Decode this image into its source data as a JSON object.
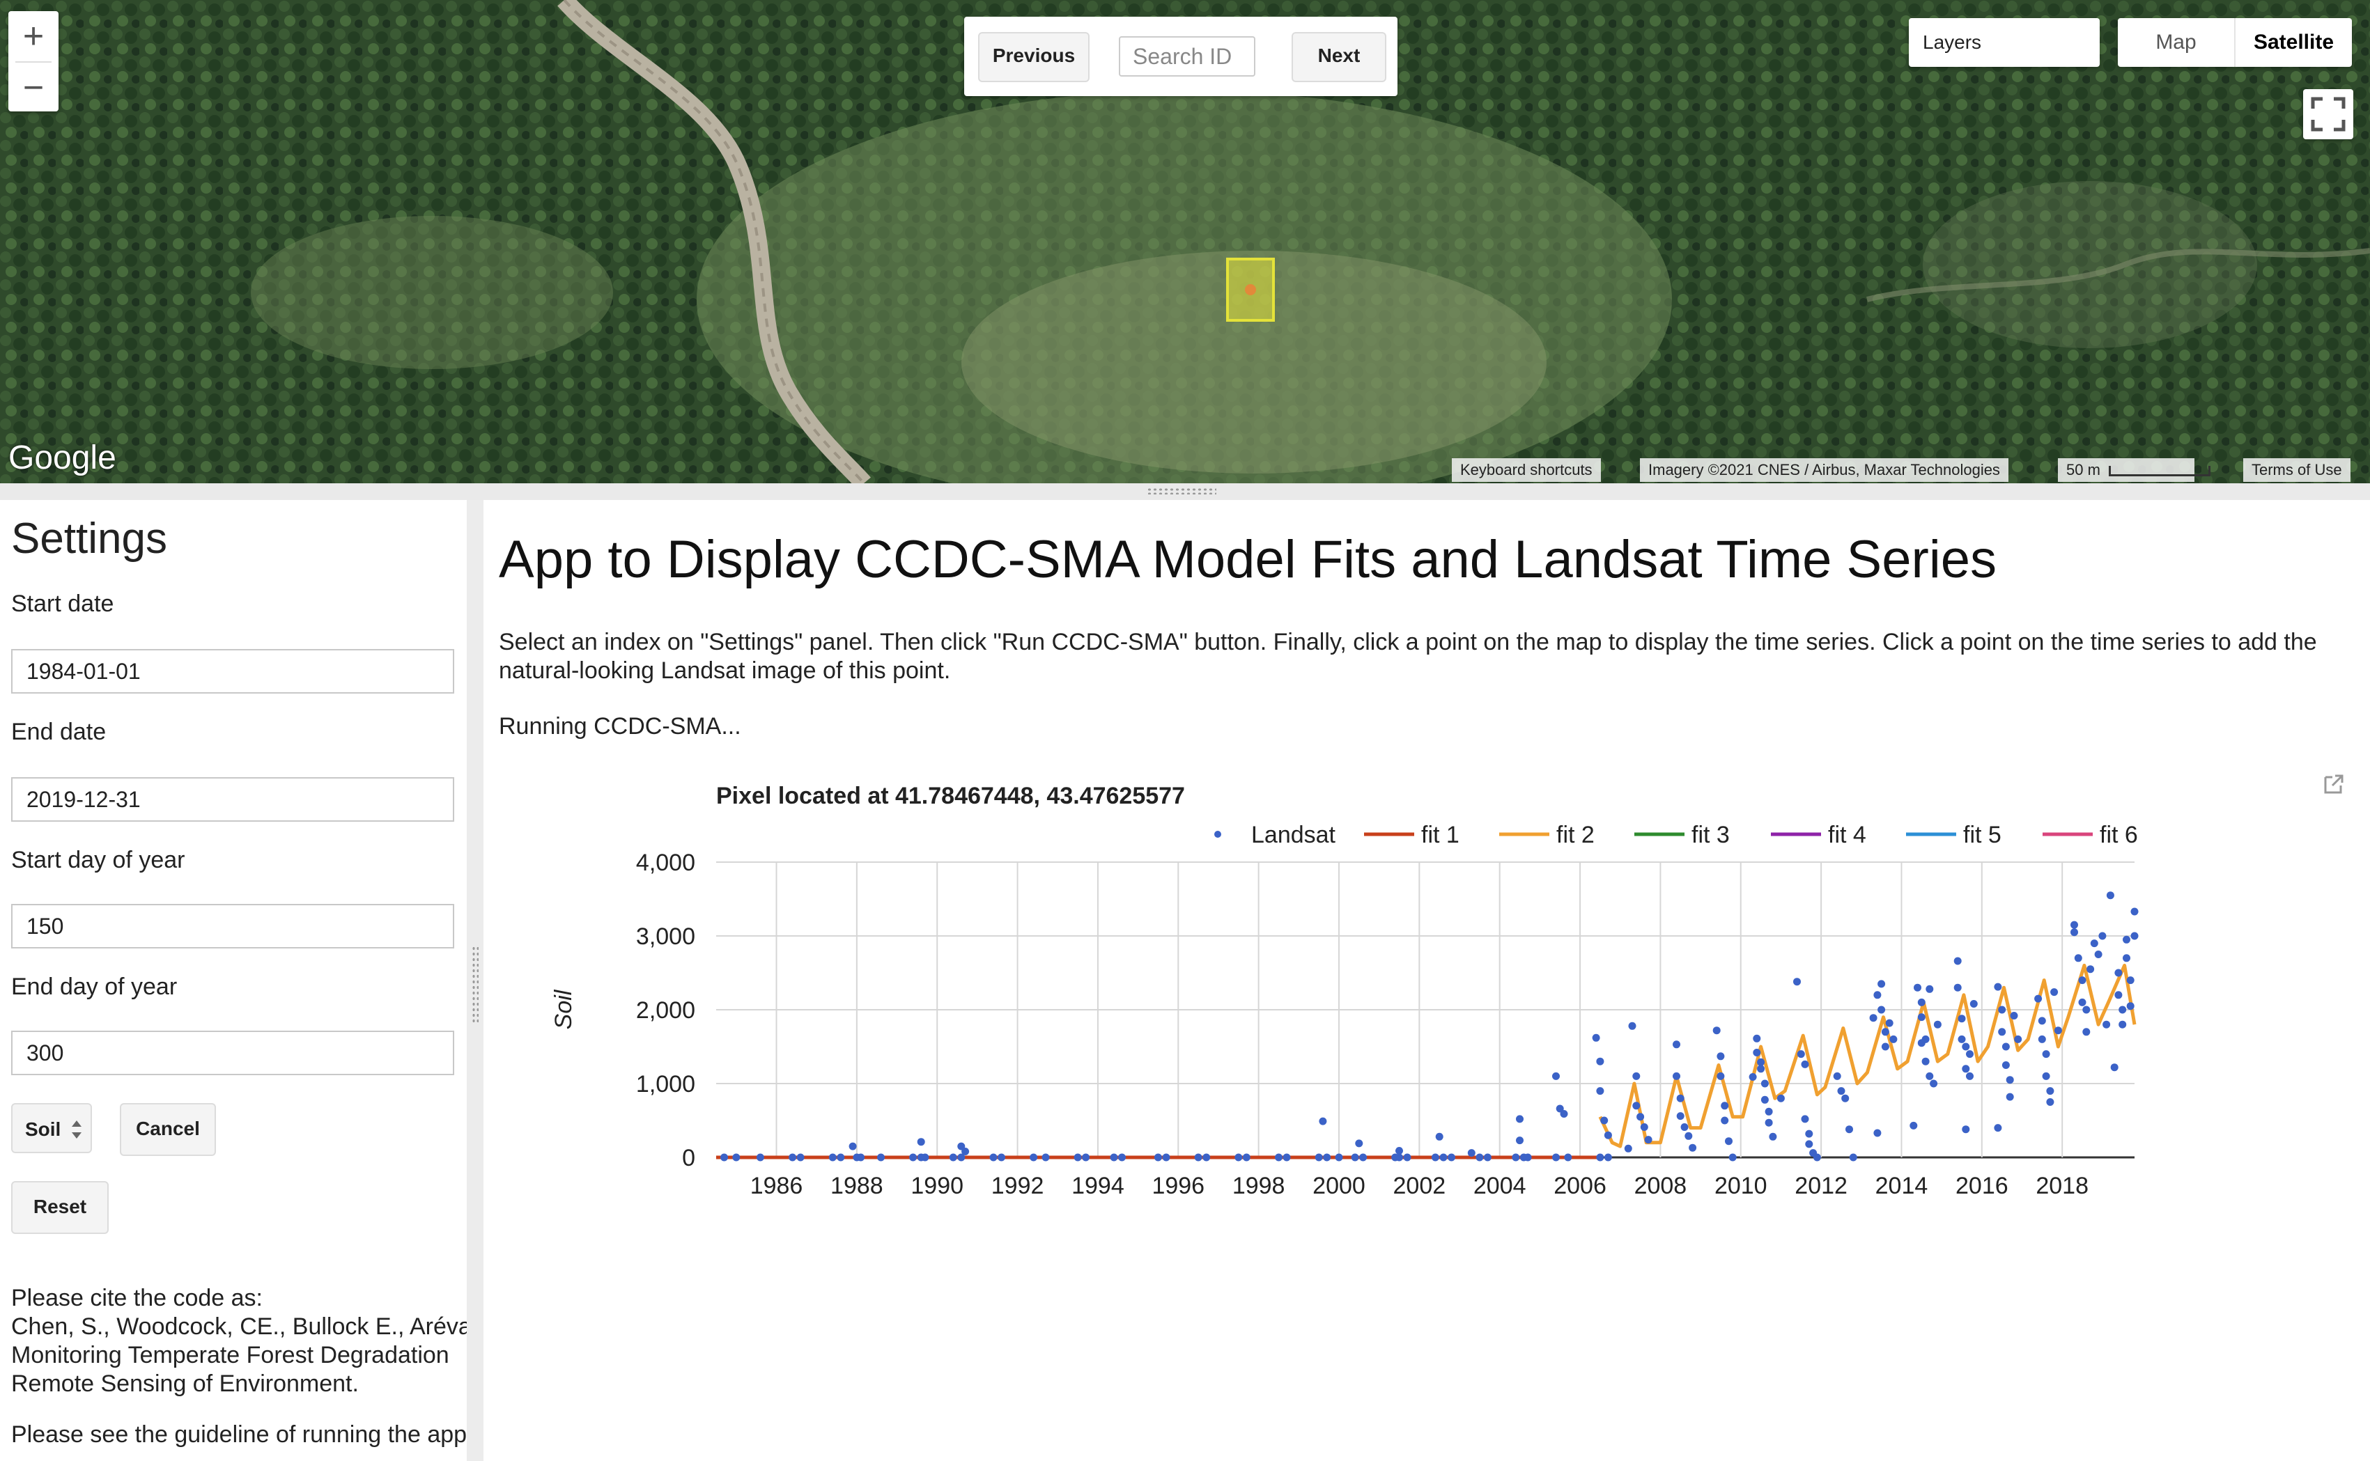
{
  "map": {
    "zoom_in": "+",
    "zoom_out": "−",
    "previous_label": "Previous",
    "search_placeholder": "Search ID",
    "next_label": "Next",
    "layers_label": "Layers",
    "map_type_map": "Map",
    "map_type_satellite": "Satellite",
    "google_logo": "Google",
    "keyboard_shortcuts": "Keyboard shortcuts",
    "imagery_credit": "Imagery ©2021 CNES / Airbus, Maxar Technologies",
    "scale_label": "50 m",
    "terms": "Terms of Use",
    "marker_color": "#e4e23a",
    "icons": [
      "plus-icon",
      "minus-icon",
      "fullscreen-icon"
    ]
  },
  "settings": {
    "title": "Settings",
    "start_date_label": "Start date",
    "start_date_value": "1984-01-01",
    "end_date_label": "End date",
    "end_date_value": "2019-12-31",
    "start_doy_label": "Start day of year",
    "start_doy_value": "150",
    "end_doy_label": "End day of year",
    "end_doy_value": "300",
    "index_select_value": "Soil",
    "cancel_label": "Cancel",
    "reset_label": "Reset",
    "cite_lines": [
      "Please cite the code as:",
      "Chen, S., Woodcock, CE., Bullock E., Arévalo",
      "Monitoring Temperate Forest Degradation",
      "Remote Sensing of Environment."
    ],
    "guideline_text": "Please see the guideline of running the app"
  },
  "main": {
    "title": "App to Display CCDC-SMA Model Fits and Landsat Time Series",
    "instructions": "Select an index on \"Settings\" panel. Then click \"Run CCDC-SMA\" button. Finally, click a point on the map to display the time series. Click a point on the time series to add the natural-looking Landsat image of this point.",
    "status": "Running CCDC-SMA..."
  },
  "chart_data": {
    "type": "scatter",
    "title": "Pixel located at 41.78467448, 43.47625577",
    "xlabel": "",
    "ylabel": "Soil",
    "xlim": [
      1984.5,
      2019.8
    ],
    "ylim": [
      0,
      4000
    ],
    "yticks": [
      0,
      1000,
      2000,
      3000,
      4000
    ],
    "ytick_labels": [
      "0",
      "1,000",
      "2,000",
      "3,000",
      "4,000"
    ],
    "xticks": [
      1986,
      1988,
      1990,
      1992,
      1994,
      1996,
      1998,
      2000,
      2002,
      2004,
      2006,
      2008,
      2010,
      2012,
      2014,
      2016,
      2018
    ],
    "grid": true,
    "legend_position": "top",
    "legend": [
      {
        "name": "Landsat",
        "kind": "dot",
        "color": "#3b62c7"
      },
      {
        "name": "fit 1",
        "kind": "line",
        "color": "#c8401b"
      },
      {
        "name": "fit 2",
        "kind": "line",
        "color": "#f0a030"
      },
      {
        "name": "fit 3",
        "kind": "line",
        "color": "#2e8b2e"
      },
      {
        "name": "fit 4",
        "kind": "line",
        "color": "#8e23a8"
      },
      {
        "name": "fit 5",
        "kind": "line",
        "color": "#2c8fd6"
      },
      {
        "name": "fit 6",
        "kind": "line",
        "color": "#d9457c"
      }
    ],
    "series": [
      {
        "name": "Landsat",
        "points": [
          [
            1984.7,
            0
          ],
          [
            1985.0,
            0
          ],
          [
            1985.6,
            0
          ],
          [
            1986.4,
            0
          ],
          [
            1986.6,
            0
          ],
          [
            1987.4,
            0
          ],
          [
            1987.6,
            0
          ],
          [
            1988.0,
            0
          ],
          [
            1988.1,
            0
          ],
          [
            1988.6,
            0
          ],
          [
            1989.4,
            0
          ],
          [
            1989.6,
            0
          ],
          [
            1989.7,
            0
          ],
          [
            1990.4,
            0
          ],
          [
            1990.6,
            0
          ],
          [
            1991.4,
            0
          ],
          [
            1991.6,
            0
          ],
          [
            1992.4,
            0
          ],
          [
            1992.7,
            0
          ],
          [
            1993.5,
            0
          ],
          [
            1993.7,
            0
          ],
          [
            1994.4,
            0
          ],
          [
            1994.6,
            0
          ],
          [
            1995.5,
            0
          ],
          [
            1995.7,
            0
          ],
          [
            1996.5,
            0
          ],
          [
            1996.7,
            0
          ],
          [
            1997.5,
            0
          ],
          [
            1997.7,
            0
          ],
          [
            1998.5,
            0
          ],
          [
            1998.7,
            0
          ],
          [
            1999.5,
            0
          ],
          [
            1999.7,
            0
          ],
          [
            2000.0,
            0
          ],
          [
            2000.4,
            0
          ],
          [
            2000.6,
            0
          ],
          [
            2001.4,
            0
          ],
          [
            2001.5,
            0
          ],
          [
            2001.7,
            0
          ],
          [
            2002.4,
            0
          ],
          [
            2002.6,
            0
          ],
          [
            2002.8,
            0
          ],
          [
            2003.5,
            0
          ],
          [
            2003.7,
            0
          ],
          [
            2004.4,
            0
          ],
          [
            2004.6,
            0
          ],
          [
            2004.7,
            0
          ],
          [
            2005.4,
            0
          ],
          [
            2005.7,
            0
          ],
          [
            2006.5,
            0
          ],
          [
            2006.7,
            0
          ],
          [
            1987.9,
            150
          ],
          [
            1989.6,
            210
          ],
          [
            1990.6,
            150
          ],
          [
            1990.7,
            80
          ],
          [
            1999.6,
            490
          ],
          [
            2000.5,
            190
          ],
          [
            2001.5,
            90
          ],
          [
            2002.5,
            280
          ],
          [
            2003.3,
            60
          ],
          [
            2004.5,
            520
          ],
          [
            2004.5,
            230
          ],
          [
            2005.4,
            1100
          ],
          [
            2005.5,
            660
          ],
          [
            2005.6,
            590
          ],
          [
            2006.4,
            1620
          ],
          [
            2006.5,
            1300
          ],
          [
            2006.5,
            900
          ],
          [
            2006.6,
            500
          ],
          [
            2006.7,
            300
          ],
          [
            2007.2,
            120
          ],
          [
            2007.3,
            1780
          ],
          [
            2007.4,
            1100
          ],
          [
            2007.4,
            700
          ],
          [
            2007.5,
            550
          ],
          [
            2007.6,
            410
          ],
          [
            2007.7,
            240
          ],
          [
            2008.4,
            1530
          ],
          [
            2008.4,
            1100
          ],
          [
            2008.5,
            800
          ],
          [
            2008.5,
            560
          ],
          [
            2008.6,
            410
          ],
          [
            2008.7,
            290
          ],
          [
            2008.8,
            130
          ],
          [
            2009.4,
            1720
          ],
          [
            2009.5,
            1370
          ],
          [
            2009.5,
            1100
          ],
          [
            2009.6,
            700
          ],
          [
            2009.6,
            500
          ],
          [
            2009.7,
            220
          ],
          [
            2009.8,
            0
          ],
          [
            2010.3,
            1090
          ],
          [
            2010.4,
            1610
          ],
          [
            2010.4,
            1420
          ],
          [
            2010.5,
            1290
          ],
          [
            2010.5,
            1200
          ],
          [
            2010.6,
            1000
          ],
          [
            2010.6,
            780
          ],
          [
            2010.7,
            620
          ],
          [
            2010.7,
            470
          ],
          [
            2010.8,
            280
          ],
          [
            2011.0,
            800
          ],
          [
            2011.4,
            2380
          ],
          [
            2011.5,
            1400
          ],
          [
            2011.6,
            1260
          ],
          [
            2011.6,
            520
          ],
          [
            2011.7,
            320
          ],
          [
            2011.7,
            180
          ],
          [
            2011.8,
            60
          ],
          [
            2011.9,
            0
          ],
          [
            2012.4,
            1100
          ],
          [
            2012.5,
            900
          ],
          [
            2012.6,
            800
          ],
          [
            2012.7,
            380
          ],
          [
            2012.8,
            0
          ],
          [
            2013.3,
            1890
          ],
          [
            2013.4,
            2200
          ],
          [
            2013.5,
            2350
          ],
          [
            2013.5,
            2000
          ],
          [
            2013.6,
            1700
          ],
          [
            2013.6,
            1500
          ],
          [
            2013.7,
            1820
          ],
          [
            2013.4,
            330
          ],
          [
            2013.8,
            1600
          ],
          [
            2014.4,
            2300
          ],
          [
            2014.5,
            2100
          ],
          [
            2014.5,
            1900
          ],
          [
            2014.6,
            1600
          ],
          [
            2014.6,
            1300
          ],
          [
            2014.7,
            1100
          ],
          [
            2014.8,
            1000
          ],
          [
            2014.5,
            1550
          ],
          [
            2014.3,
            430
          ],
          [
            2014.7,
            2280
          ],
          [
            2014.9,
            1800
          ],
          [
            2015.4,
            2660
          ],
          [
            2015.4,
            2300
          ],
          [
            2015.5,
            1880
          ],
          [
            2015.5,
            1600
          ],
          [
            2015.6,
            1500
          ],
          [
            2015.6,
            1200
          ],
          [
            2015.7,
            1100
          ],
          [
            2015.7,
            1400
          ],
          [
            2015.6,
            380
          ],
          [
            2015.8,
            2080
          ],
          [
            2016.4,
            2310
          ],
          [
            2016.5,
            2000
          ],
          [
            2016.5,
            1700
          ],
          [
            2016.6,
            1500
          ],
          [
            2016.6,
            1250
          ],
          [
            2016.7,
            1050
          ],
          [
            2016.7,
            820
          ],
          [
            2016.4,
            400
          ],
          [
            2016.8,
            1920
          ],
          [
            2016.9,
            1600
          ],
          [
            2017.4,
            2150
          ],
          [
            2017.5,
            1850
          ],
          [
            2017.5,
            1600
          ],
          [
            2017.6,
            1400
          ],
          [
            2017.6,
            1100
          ],
          [
            2017.7,
            900
          ],
          [
            2017.7,
            750
          ],
          [
            2017.8,
            2240
          ],
          [
            2017.9,
            1720
          ],
          [
            2018.3,
            3050
          ],
          [
            2018.3,
            3150
          ],
          [
            2018.4,
            2700
          ],
          [
            2018.5,
            2400
          ],
          [
            2018.5,
            2100
          ],
          [
            2018.6,
            2000
          ],
          [
            2018.6,
            1700
          ],
          [
            2018.7,
            2550
          ],
          [
            2018.8,
            2900
          ],
          [
            2018.9,
            2750
          ],
          [
            2019.0,
            3000
          ],
          [
            2019.1,
            1800
          ],
          [
            2019.4,
            2500
          ],
          [
            2019.4,
            2200
          ],
          [
            2019.5,
            2000
          ],
          [
            2019.5,
            1800
          ],
          [
            2019.6,
            2950
          ],
          [
            2019.6,
            2700
          ],
          [
            2019.7,
            2400
          ],
          [
            2019.7,
            2050
          ],
          [
            2019.3,
            1220
          ],
          [
            2019.2,
            3550
          ],
          [
            2019.8,
            3330
          ],
          [
            2019.8,
            3000
          ]
        ]
      },
      {
        "name": "fit 1",
        "points": [
          [
            1984.5,
            0
          ],
          [
            2006.5,
            0
          ]
        ]
      },
      {
        "name": "fit 2",
        "points": [
          [
            2006.5,
            550
          ],
          [
            2006.8,
            200
          ],
          [
            2007.0,
            150
          ],
          [
            2007.35,
            1000
          ],
          [
            2007.65,
            200
          ],
          [
            2008.0,
            200
          ],
          [
            2008.4,
            1100
          ],
          [
            2008.75,
            400
          ],
          [
            2009.0,
            400
          ],
          [
            2009.45,
            1250
          ],
          [
            2009.8,
            550
          ],
          [
            2010.05,
            550
          ],
          [
            2010.5,
            1500
          ],
          [
            2010.85,
            800
          ],
          [
            2011.1,
            900
          ],
          [
            2011.55,
            1650
          ],
          [
            2011.9,
            850
          ],
          [
            2012.1,
            950
          ],
          [
            2012.55,
            1750
          ],
          [
            2012.9,
            1000
          ],
          [
            2013.15,
            1150
          ],
          [
            2013.55,
            1900
          ],
          [
            2013.9,
            1200
          ],
          [
            2014.15,
            1300
          ],
          [
            2014.55,
            2100
          ],
          [
            2014.9,
            1300
          ],
          [
            2015.15,
            1400
          ],
          [
            2015.55,
            2200
          ],
          [
            2015.9,
            1300
          ],
          [
            2016.15,
            1500
          ],
          [
            2016.55,
            2300
          ],
          [
            2016.9,
            1450
          ],
          [
            2017.15,
            1600
          ],
          [
            2017.55,
            2400
          ],
          [
            2017.9,
            1500
          ],
          [
            2018.15,
            1900
          ],
          [
            2018.55,
            2600
          ],
          [
            2018.9,
            1800
          ],
          [
            2019.15,
            2100
          ],
          [
            2019.55,
            2600
          ],
          [
            2019.8,
            1800
          ]
        ]
      }
    ]
  }
}
